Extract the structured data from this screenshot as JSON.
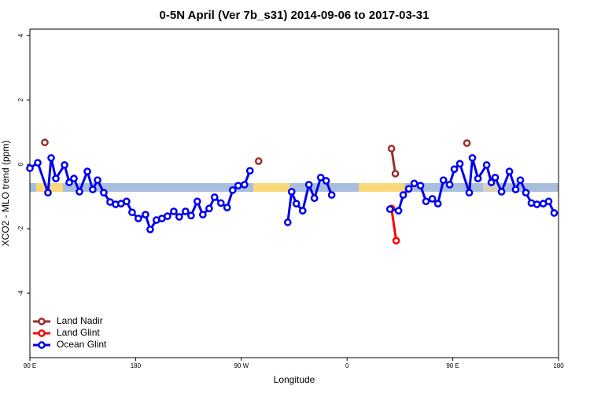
{
  "chart_data": {
    "type": "line",
    "title": "0-5N April (Ver 7b_s31)   2014-09-06 to 2017-03-31",
    "x_label": "Longitude",
    "y_label": "XCO2 - MLO trend (ppm)",
    "xlim": [
      90,
      540
    ],
    "ylim": [
      -6,
      4.2
    ],
    "xticks": [
      {
        "value": 90,
        "label": "90 E"
      },
      180,
      {
        "value": 270,
        "label": "90 W"
      },
      {
        "value": 360,
        "label": "0"
      },
      {
        "value": 450,
        "label": "90 E"
      },
      {
        "value": 540,
        "label": "180"
      }
    ],
    "yticks": [
      -4,
      -2,
      0,
      2,
      4
    ],
    "legend": "bottom-left",
    "series": [
      {
        "name": "Land Nadir",
        "color": "#9b2d30",
        "x": [
          102.7,
          null,
          284.7,
          null,
          397.8,
          401.1,
          null,
          462.0
        ],
        "values": [
          0.68,
          null,
          0.1,
          null,
          0.49,
          -0.29,
          null,
          0.66
        ]
      },
      {
        "name": "Land Glint",
        "color": "#ff0000",
        "x": [
          397.8,
          401.8
        ],
        "values": [
          -1.37,
          -2.37
        ]
      },
      {
        "name": "Ocean Glint",
        "color": "#0000ee",
        "x": [
          90.0,
          96.7,
          105.4,
          108.1,
          112.1,
          119.5,
          123.5,
          127.5,
          132.2,
          138.9,
          143.5,
          147.6,
          152.9,
          158.3,
          163.0,
          167.6,
          172.3,
          177.0,
          182.3,
          188.4,
          192.4,
          197.7,
          202.4,
          207.1,
          212.5,
          217.1,
          222.5,
          227.2,
          232.5,
          237.2,
          242.6,
          247.2,
          252.6,
          257.9,
          262.6,
          267.3,
          272.7,
          277.3,
          null,
          309.5,
          312.8,
          316.8,
          322.2,
          327.5,
          332.2,
          337.6,
          342.2,
          346.9,
          null,
          396.5,
          403.8,
          407.8,
          412.5,
          417.2,
          422.5,
          427.2,
          432.6,
          437.3,
          442.0,
          447.3,
          451.3,
          456.0,
          464.0,
          466.7,
          471.4,
          478.8,
          482.8,
          486.1,
          491.5,
          498.2,
          503.5,
          507.5,
          512.2,
          516.9,
          521.6,
          527.0,
          531.6,
          536.3
        ],
        "values": [
          -0.12,
          0.05,
          -0.88,
          0.2,
          -0.44,
          -0.02,
          -0.56,
          -0.44,
          -0.85,
          -0.22,
          -0.78,
          -0.49,
          -0.88,
          -1.17,
          -1.24,
          -1.22,
          -1.15,
          -1.49,
          -1.68,
          -1.56,
          -2.02,
          -1.73,
          -1.68,
          -1.61,
          -1.46,
          -1.63,
          -1.46,
          -1.59,
          -1.15,
          -1.56,
          -1.37,
          -1.02,
          -1.2,
          -1.34,
          -0.8,
          -0.66,
          -0.63,
          -0.2,
          null,
          -1.8,
          -0.85,
          -1.22,
          -1.44,
          -0.63,
          -1.05,
          -0.41,
          -0.51,
          -0.95,
          null,
          -1.39,
          -1.44,
          -0.95,
          -0.76,
          -0.59,
          -0.66,
          -1.15,
          -1.07,
          -1.22,
          -0.49,
          -0.63,
          -0.15,
          0.02,
          -0.88,
          0.2,
          -0.44,
          -0.02,
          -0.56,
          -0.41,
          -0.85,
          -0.22,
          -0.78,
          -0.49,
          -0.88,
          -1.2,
          -1.24,
          -1.22,
          -1.15,
          -1.51
        ]
      }
    ]
  }
}
